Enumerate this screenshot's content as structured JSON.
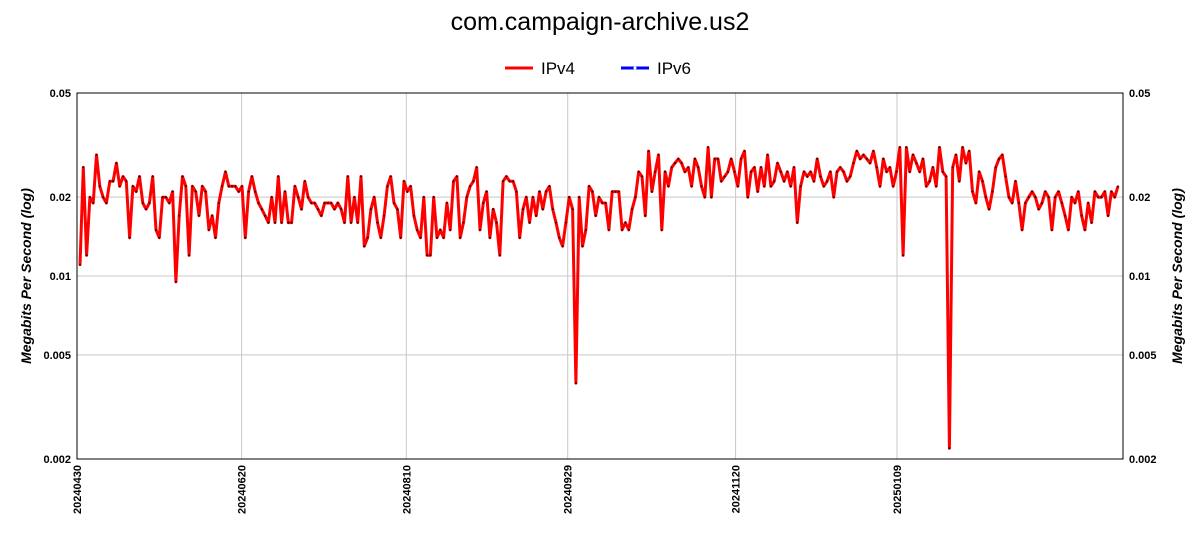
{
  "chart_data": {
    "type": "line",
    "title": "com.campaign-archive.us2",
    "ylabel_left": "Megabits Per Second (log)",
    "ylabel_right": "Megabits Per Second (log)",
    "yscale": "log",
    "ylim": [
      0.002,
      0.05
    ],
    "yticks": [
      {
        "value": 0.05,
        "label": "0.05"
      },
      {
        "value": 0.02,
        "label": "0.02"
      },
      {
        "value": 0.01,
        "label": "0.01"
      },
      {
        "value": 0.005,
        "label": "0.005"
      },
      {
        "value": 0.002,
        "label": "0.002"
      }
    ],
    "x_start": "2024-04-30",
    "x_end": "2025-03-20",
    "xticks": [
      {
        "date": "2024-04-30",
        "label": "20240430"
      },
      {
        "date": "2024-06-20",
        "label": "20240620"
      },
      {
        "date": "2024-08-10",
        "label": "20240810"
      },
      {
        "date": "2024-09-29",
        "label": "20240929"
      },
      {
        "date": "2024-11-20",
        "label": "20241120"
      },
      {
        "date": "2025-01-09",
        "label": "20250109"
      }
    ],
    "grid": true,
    "legend_position": "top-center",
    "series": [
      {
        "name": "IPv4",
        "color": "#ff0000",
        "values": [
          0.011,
          0.026,
          0.012,
          0.02,
          0.019,
          0.029,
          0.022,
          0.02,
          0.019,
          0.023,
          0.023,
          0.027,
          0.022,
          0.024,
          0.023,
          0.014,
          0.022,
          0.021,
          0.024,
          0.019,
          0.018,
          0.019,
          0.024,
          0.015,
          0.014,
          0.02,
          0.02,
          0.019,
          0.021,
          0.0095,
          0.017,
          0.024,
          0.022,
          0.012,
          0.022,
          0.021,
          0.017,
          0.022,
          0.021,
          0.015,
          0.017,
          0.014,
          0.019,
          0.022,
          0.025,
          0.022,
          0.022,
          0.022,
          0.021,
          0.022,
          0.014,
          0.021,
          0.024,
          0.021,
          0.019,
          0.018,
          0.017,
          0.016,
          0.02,
          0.016,
          0.024,
          0.016,
          0.021,
          0.016,
          0.016,
          0.022,
          0.02,
          0.018,
          0.023,
          0.02,
          0.019,
          0.019,
          0.018,
          0.017,
          0.019,
          0.019,
          0.019,
          0.018,
          0.019,
          0.018,
          0.016,
          0.024,
          0.016,
          0.02,
          0.016,
          0.024,
          0.013,
          0.014,
          0.018,
          0.02,
          0.016,
          0.014,
          0.017,
          0.022,
          0.024,
          0.019,
          0.018,
          0.014,
          0.023,
          0.021,
          0.022,
          0.017,
          0.015,
          0.014,
          0.02,
          0.012,
          0.012,
          0.02,
          0.014,
          0.015,
          0.014,
          0.019,
          0.015,
          0.023,
          0.024,
          0.014,
          0.016,
          0.02,
          0.022,
          0.023,
          0.026,
          0.015,
          0.019,
          0.021,
          0.014,
          0.018,
          0.016,
          0.012,
          0.023,
          0.024,
          0.023,
          0.023,
          0.021,
          0.014,
          0.018,
          0.02,
          0.016,
          0.02,
          0.017,
          0.021,
          0.018,
          0.021,
          0.022,
          0.018,
          0.016,
          0.014,
          0.013,
          0.016,
          0.02,
          0.018,
          0.0039,
          0.02,
          0.013,
          0.015,
          0.022,
          0.021,
          0.017,
          0.02,
          0.019,
          0.019,
          0.015,
          0.021,
          0.021,
          0.021,
          0.015,
          0.016,
          0.015,
          0.018,
          0.02,
          0.025,
          0.024,
          0.017,
          0.03,
          0.021,
          0.025,
          0.029,
          0.015,
          0.025,
          0.022,
          0.026,
          0.027,
          0.028,
          0.027,
          0.025,
          0.026,
          0.022,
          0.028,
          0.026,
          0.022,
          0.02,
          0.031,
          0.02,
          0.028,
          0.028,
          0.023,
          0.024,
          0.025,
          0.028,
          0.025,
          0.022,
          0.028,
          0.03,
          0.02,
          0.025,
          0.026,
          0.021,
          0.026,
          0.022,
          0.029,
          0.022,
          0.023,
          0.027,
          0.025,
          0.023,
          0.025,
          0.022,
          0.026,
          0.016,
          0.022,
          0.025,
          0.024,
          0.025,
          0.023,
          0.028,
          0.024,
          0.022,
          0.023,
          0.025,
          0.02,
          0.025,
          0.026,
          0.025,
          0.023,
          0.024,
          0.027,
          0.03,
          0.028,
          0.029,
          0.028,
          0.027,
          0.03,
          0.026,
          0.022,
          0.028,
          0.025,
          0.026,
          0.022,
          0.025,
          0.031,
          0.012,
          0.031,
          0.025,
          0.029,
          0.027,
          0.025,
          0.028,
          0.022,
          0.023,
          0.026,
          0.022,
          0.031,
          0.025,
          0.024,
          0.0022,
          0.026,
          0.029,
          0.023,
          0.031,
          0.027,
          0.03,
          0.021,
          0.019,
          0.025,
          0.023,
          0.02,
          0.018,
          0.021,
          0.026,
          0.028,
          0.029,
          0.024,
          0.02,
          0.019,
          0.023,
          0.019,
          0.015,
          0.019,
          0.02,
          0.021,
          0.02,
          0.018,
          0.019,
          0.021,
          0.02,
          0.015,
          0.02,
          0.021,
          0.019,
          0.017,
          0.015,
          0.02,
          0.019,
          0.021,
          0.017,
          0.015,
          0.019,
          0.016,
          0.021,
          0.02,
          0.02,
          0.021,
          0.017,
          0.021,
          0.02,
          0.022
        ]
      },
      {
        "name": "IPv6",
        "color": "#0000ff",
        "values": []
      }
    ]
  }
}
